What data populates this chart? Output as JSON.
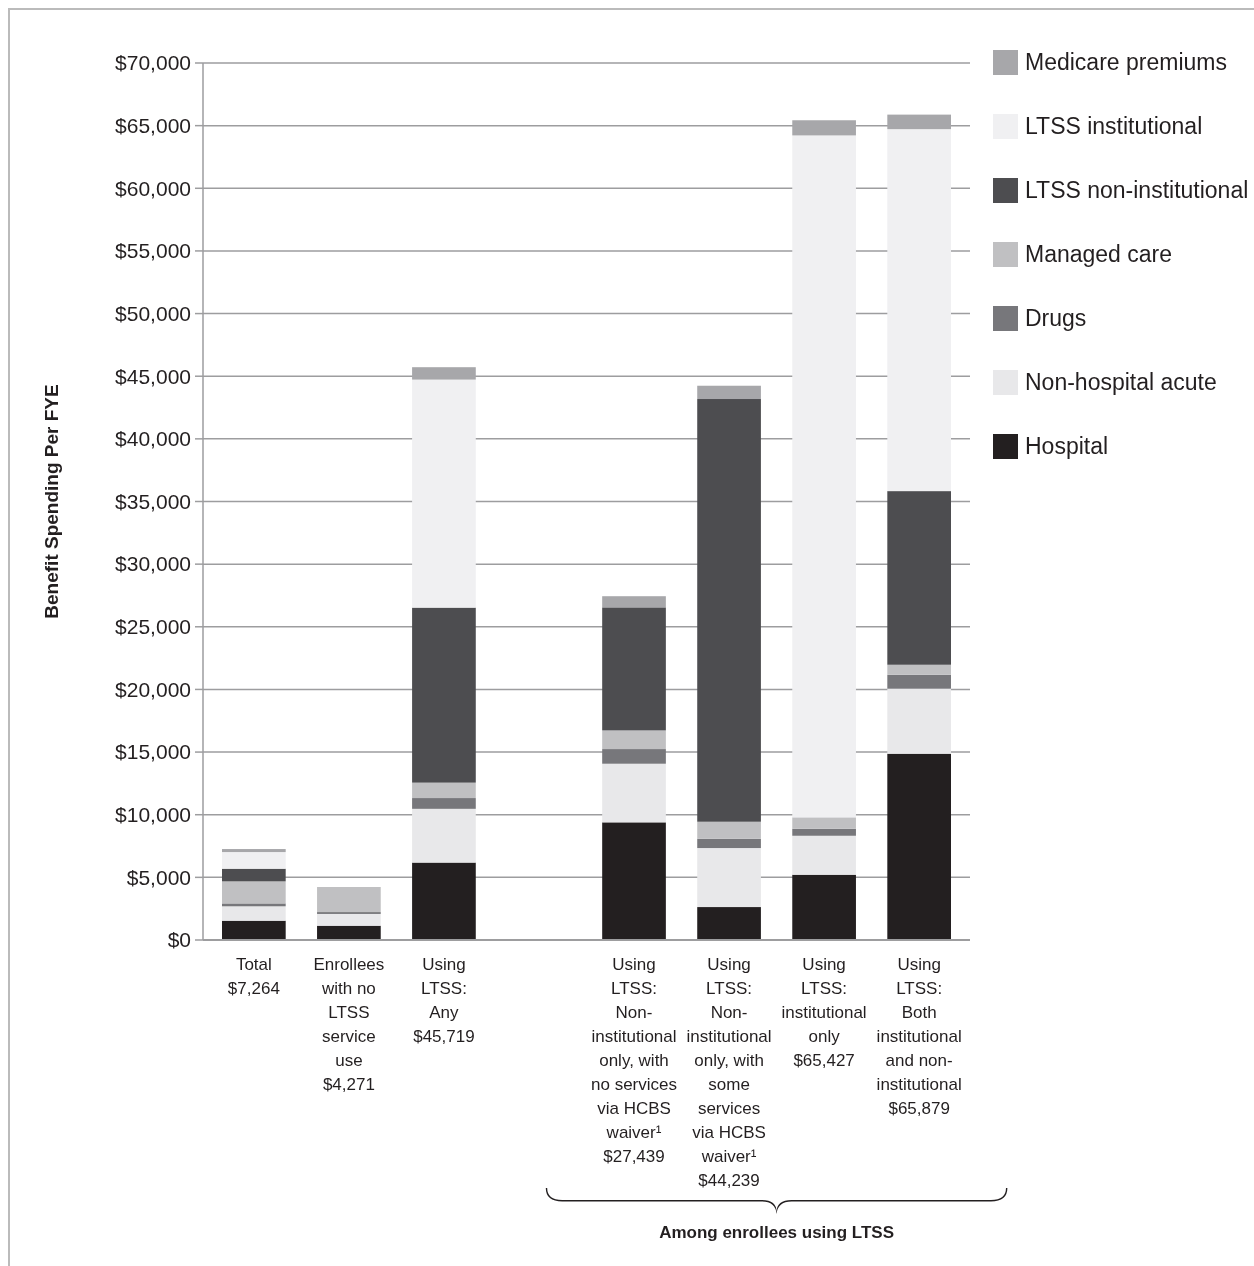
{
  "chart_data": {
    "type": "bar",
    "stacked": true,
    "ylabel": "Benefit Spending Per FYE",
    "categories": [
      "Total\n$7,264",
      "Enrollees\nwith no\nLTSS\nservice\nuse\n$4,271",
      "Using\nLTSS:\nAny\n$45,719",
      null,
      "Using\nLTSS:\nNon-\ninstitutional\nonly, with\nno services\nvia HCBS\nwaiver¹\n$27,439",
      "Using\nLTSS:\nNon-\ninstitutional\nonly, with\nsome\nservices\nvia HCBS\nwaiver¹\n$44,239",
      "Using\nLTSS:\ninstitutional\nonly\n$65,427",
      "Using\nLTSS:\nBoth\ninstitutional\nand non-\ninstitutional\n$65,879"
    ],
    "series": [
      {
        "name": "Hospital",
        "color": "#231f20",
        "values": [
          1540,
          1140,
          6180,
          null,
          9390,
          2630,
          5210,
          14870
        ]
      },
      {
        "name": "Non-hospital acute",
        "color": "#e8e8ea",
        "values": [
          1150,
          940,
          4290,
          null,
          4680,
          4710,
          3110,
          5190
        ]
      },
      {
        "name": "Drugs",
        "color": "#77777b",
        "values": [
          230,
          150,
          860,
          null,
          1170,
          740,
          560,
          1110
        ]
      },
      {
        "name": "Managed care",
        "color": "#c0c0c2",
        "values": [
          1760,
          2000,
          1230,
          null,
          1490,
          1360,
          910,
          800
        ]
      },
      {
        "name": "LTSS non-institutional",
        "color": "#4d4d50",
        "values": [
          1010,
          0,
          13970,
          null,
          9820,
          33740,
          0,
          13860
        ]
      },
      {
        "name": "LTSS institutional",
        "color": "#f0f0f2",
        "values": [
          1330,
          0,
          18200,
          null,
          0,
          0,
          54430,
          28890
        ]
      },
      {
        "name": "Medicare premiums",
        "color": "#a7a7aa",
        "values": [
          240,
          null,
          990,
          null,
          890,
          1060,
          1210,
          1160
        ]
      }
    ],
    "ylim": [
      0,
      70000
    ],
    "yticks": [
      {
        "value": 0,
        "label": "$0"
      },
      {
        "value": 5000,
        "label": "$5,000"
      },
      {
        "value": 10000,
        "label": "$10,000"
      },
      {
        "value": 15000,
        "label": "$15,000"
      },
      {
        "value": 20000,
        "label": "$20,000"
      },
      {
        "value": 25000,
        "label": "$25,000"
      },
      {
        "value": 30000,
        "label": "$30,000"
      },
      {
        "value": 35000,
        "label": "$35,000"
      },
      {
        "value": 40000,
        "label": "$40,000"
      },
      {
        "value": 45000,
        "label": "$45,000"
      },
      {
        "value": 50000,
        "label": "$50,000"
      },
      {
        "value": 55000,
        "label": "$55,000"
      },
      {
        "value": 60000,
        "label": "$60,000"
      },
      {
        "value": 65000,
        "label": "$65,000"
      },
      {
        "value": 70000,
        "label": "$70,000"
      }
    ],
    "grid": "y",
    "legend": "right",
    "annotations": [
      "Among enrollees using LTSS"
    ]
  }
}
